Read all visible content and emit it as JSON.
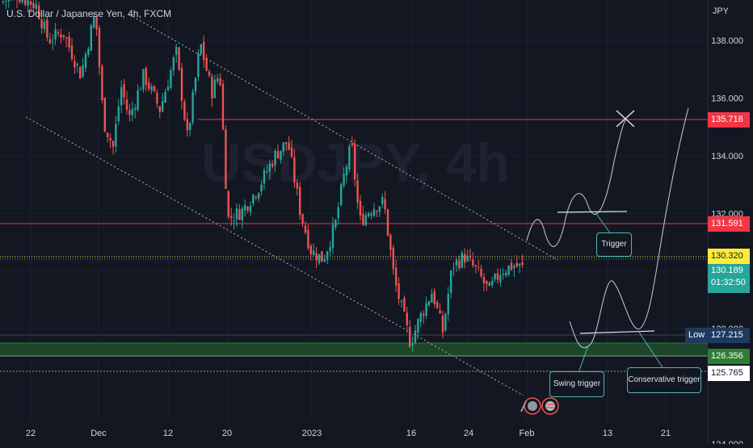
{
  "header": {
    "title": "U.S. Dollar / Japanese Yen, 4h, FXCM",
    "currency": "JPY",
    "watermark": "USDJPY, 4h"
  },
  "colors": {
    "background": "#131722",
    "bull": "#26a69a",
    "bear": "#ef5350",
    "resistance": "#f23645",
    "support_zone": "#1e5128",
    "price_tag": "#26a69a",
    "yellow_level": "#ffeb3b",
    "annotation": "#4fb6b0"
  },
  "price_tags": {
    "r1": "135.718",
    "r2": "131.591",
    "prev_close": "130.320",
    "last_price": "130.189",
    "countdown": "01:32:50",
    "low_label": "Low",
    "low_value": "127.215",
    "support_top": "126.356",
    "support_bottom": "125.765"
  },
  "annotations": {
    "trigger": "Trigger",
    "swing_trigger": "Swing trigger",
    "conservative_trigger": "Conservative trigger"
  },
  "chart_data": {
    "type": "candlestick",
    "y_range": [
      124.0,
      139.4
    ],
    "y_ticks": [
      124.0,
      128.0,
      130.0,
      132.0,
      134.0,
      136.0,
      138.0
    ],
    "y_tick_labels": [
      "124.000",
      "128.000",
      "",
      "132.000",
      "134.000",
      "136.000",
      "138.000"
    ],
    "x_tick_labels": [
      "22",
      "Dec",
      "12",
      "20",
      "2023",
      "16",
      "24",
      "Feb",
      "13",
      "21"
    ],
    "trend": [
      {
        "x": "Nov 28",
        "close": 138.4
      },
      {
        "x": "Dec 5",
        "close": 136.4
      },
      {
        "x": "Dec 13",
        "close": 135.2
      },
      {
        "x": "Dec 20",
        "close": 132.2
      },
      {
        "x": "Dec 28",
        "close": 134.3
      },
      {
        "x": "Jan 3",
        "close": 131.2
      },
      {
        "x": "Jan 10",
        "close": 132.4
      },
      {
        "x": "Jan 16",
        "close": 127.8
      },
      {
        "x": "Jan 24",
        "close": 130.1
      },
      {
        "x": "Jan 31",
        "close": 130.2
      }
    ],
    "levels": [
      {
        "name": "Resistance",
        "value": 135.718
      },
      {
        "name": "Resistance",
        "value": 131.591
      },
      {
        "name": "Prev close",
        "value": 130.32
      },
      {
        "name": "Low",
        "value": 127.215
      },
      {
        "name": "Support zone",
        "from": 125.765,
        "to": 126.356
      }
    ]
  }
}
